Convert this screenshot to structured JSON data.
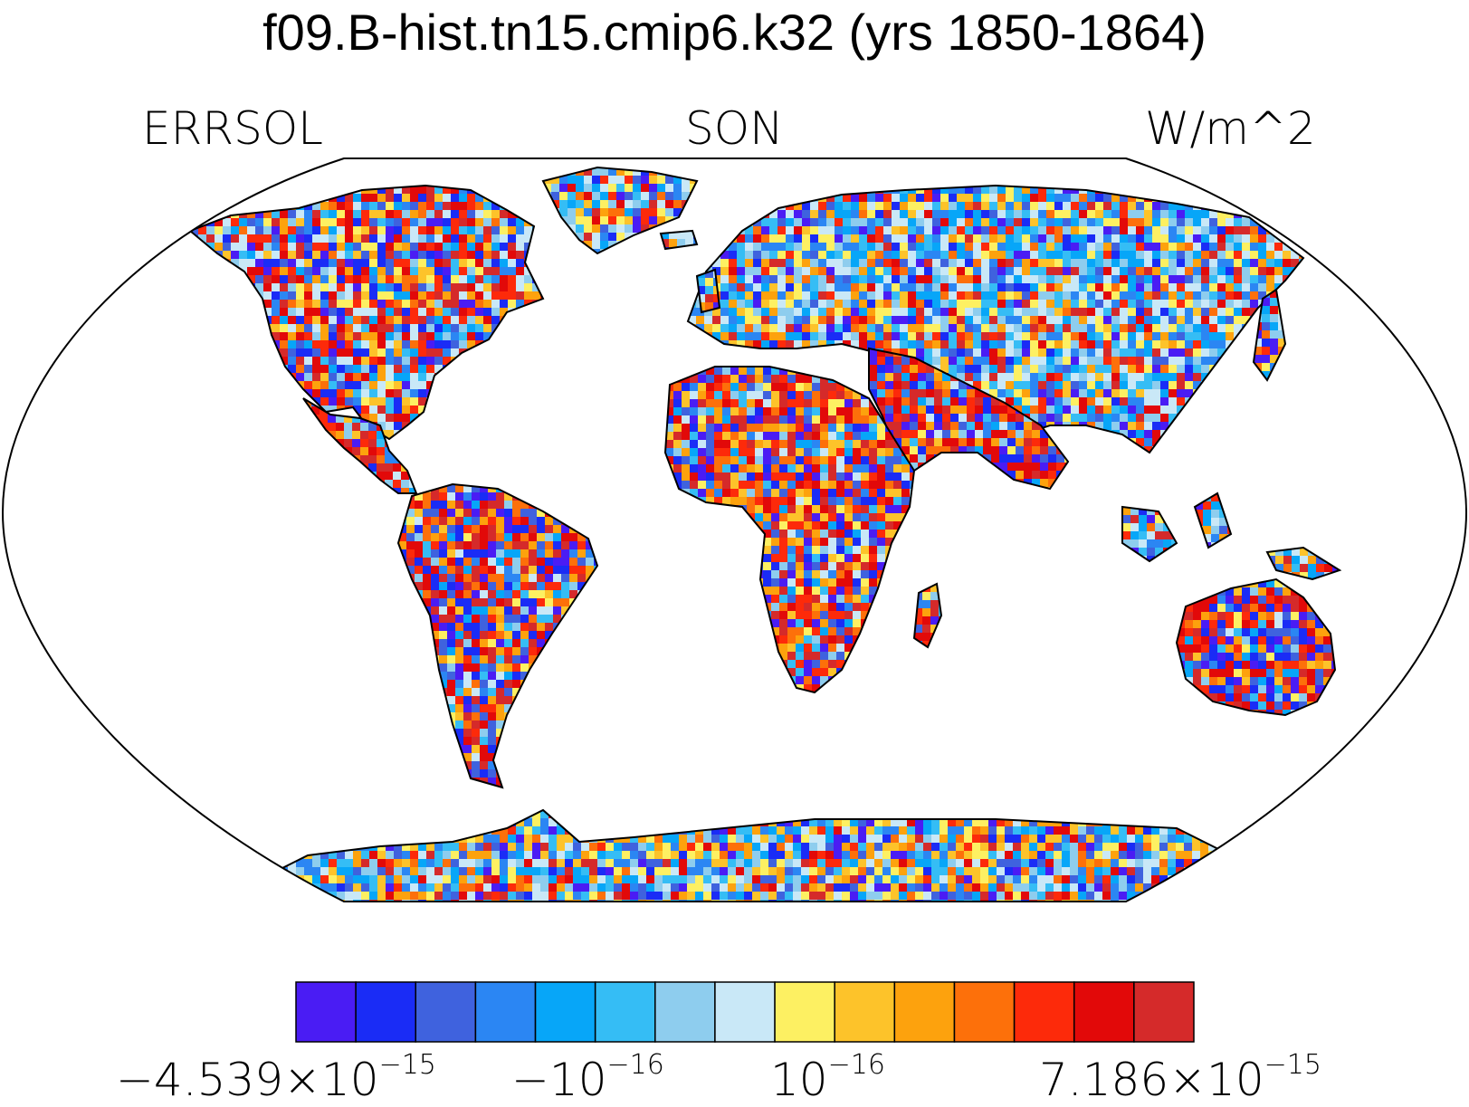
{
  "title": "f09.B-hist.tn15.cmip6.k32 (yrs 1850-1864)",
  "left_label": "ERRSOL",
  "center_label": "SON",
  "right_label": "W/m^2",
  "projection": "robinson",
  "colorbar": {
    "colors": [
      "#4a1cf4",
      "#1a2cf6",
      "#3f62de",
      "#2b86f3",
      "#07a6f8",
      "#35bdf5",
      "#8ecdee",
      "#c9e8f7",
      "#fdf062",
      "#fdc32a",
      "#fda20d",
      "#fd700a",
      "#fd2a0a",
      "#e20909",
      "#d52a2a"
    ],
    "labels": [
      {
        "base": "−4.539×10",
        "exp": "−15"
      },
      {
        "base": "−10",
        "exp": "−16"
      },
      {
        "base": "10",
        "exp": "−16"
      },
      {
        "base": "7.186×10",
        "exp": "−15"
      }
    ]
  },
  "regions": [
    {
      "name": "north-america",
      "biases": [
        0,
        1,
        0,
        0,
        0,
        0,
        0,
        1,
        0,
        0,
        0,
        0,
        1,
        1,
        1
      ]
    },
    {
      "name": "central-america",
      "biases": [
        0,
        0,
        0,
        0,
        0,
        0,
        0,
        0,
        0,
        0,
        0,
        1,
        2,
        3,
        3
      ]
    },
    {
      "name": "south-america",
      "biases": [
        1,
        2,
        1,
        0,
        0,
        0,
        0,
        0,
        0,
        0,
        1,
        1,
        1,
        2,
        2
      ]
    },
    {
      "name": "greenland",
      "biases": [
        0,
        0,
        0,
        0,
        1,
        1,
        2,
        3,
        1,
        0,
        0,
        0,
        0,
        0,
        0
      ]
    },
    {
      "name": "eurasia",
      "biases": [
        0,
        0,
        0,
        1,
        1,
        1,
        1,
        2,
        1,
        0,
        0,
        0,
        0,
        0,
        0
      ]
    },
    {
      "name": "middle-east",
      "biases": [
        1,
        2,
        1,
        0,
        0,
        0,
        0,
        0,
        0,
        0,
        1,
        1,
        2,
        3,
        3
      ]
    },
    {
      "name": "africa",
      "biases": [
        1,
        1,
        1,
        0,
        0,
        0,
        0,
        0,
        0,
        1,
        1,
        1,
        2,
        2,
        2
      ]
    },
    {
      "name": "australia",
      "biases": [
        2,
        3,
        1,
        0,
        0,
        0,
        0,
        0,
        0,
        0,
        1,
        1,
        2,
        3,
        3
      ]
    },
    {
      "name": "antarctica",
      "biases": [
        0,
        0,
        1,
        1,
        1,
        1,
        1,
        1,
        1,
        1,
        1,
        0,
        0,
        0,
        0
      ]
    },
    {
      "name": "islands",
      "biases": [
        0,
        0,
        0,
        0,
        1,
        1,
        1,
        1,
        0,
        0,
        0,
        0,
        0,
        0,
        0
      ]
    }
  ]
}
